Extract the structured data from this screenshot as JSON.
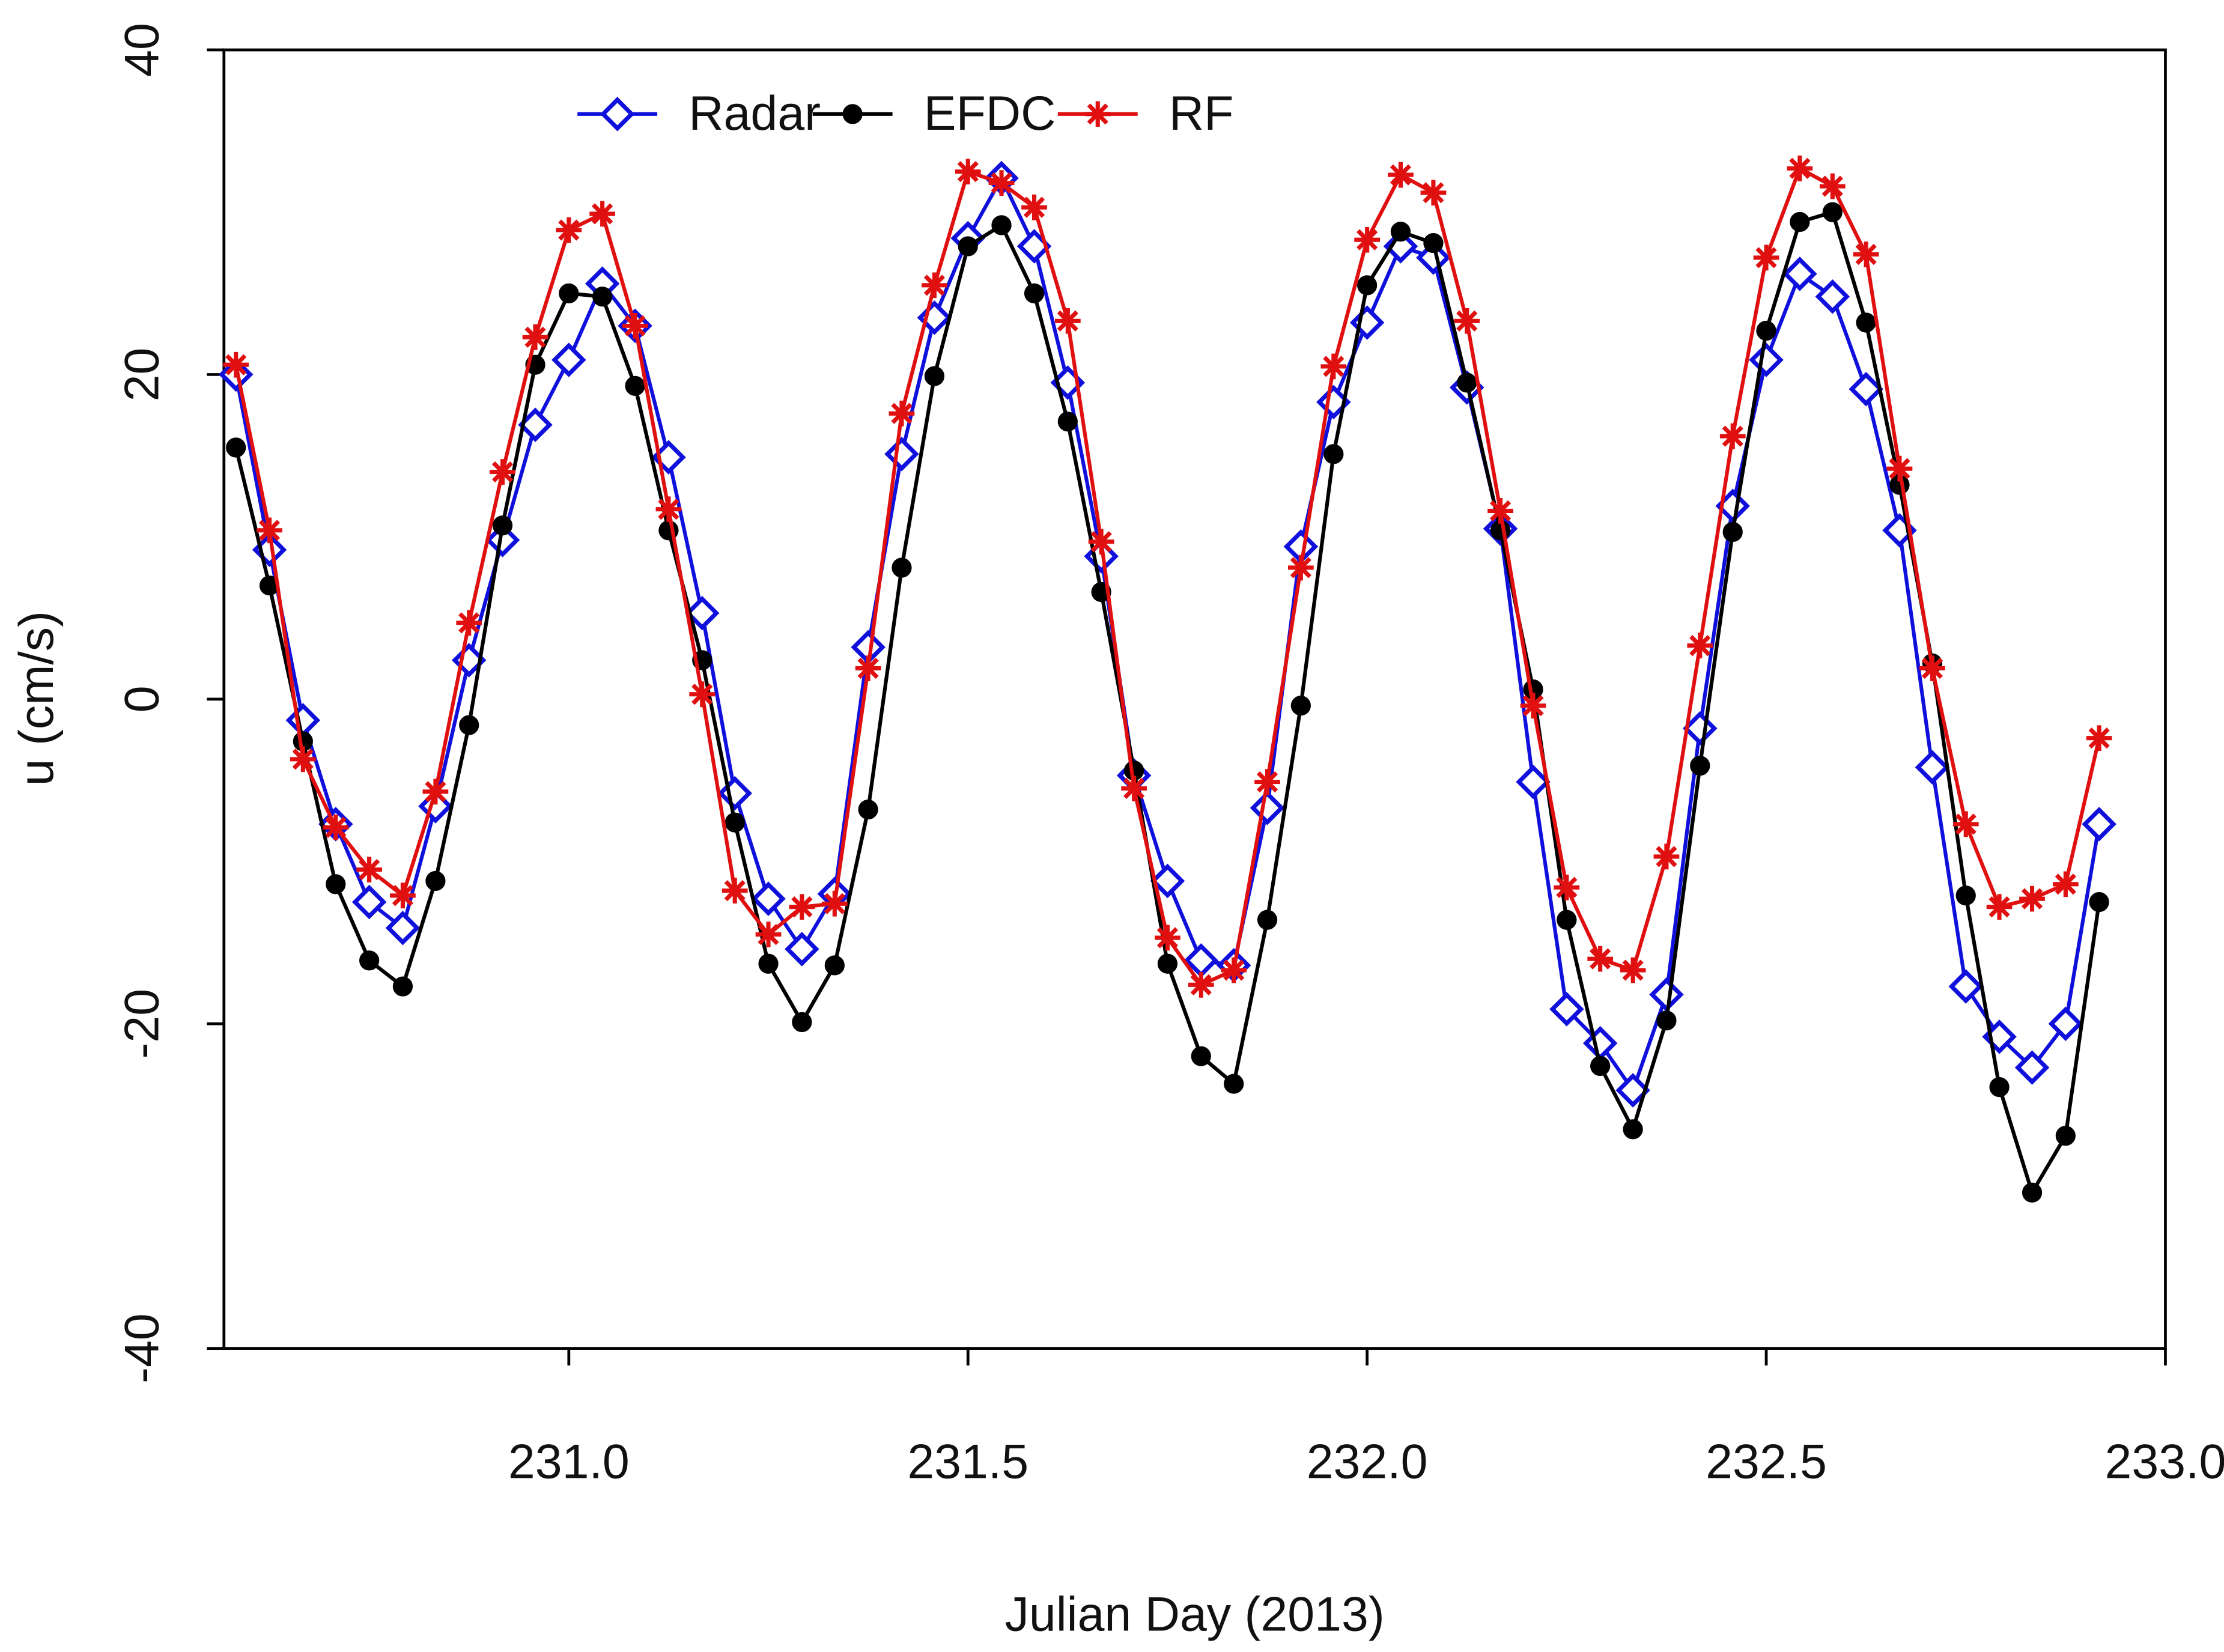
{
  "chart_data": {
    "type": "line",
    "x_label": "Julian Day (2013)",
    "y_label": "u (cm/s)",
    "x": [
      230.583,
      230.625,
      230.667,
      230.708,
      230.75,
      230.792,
      230.833,
      230.875,
      230.917,
      230.958,
      231,
      231.042,
      231.083,
      231.125,
      231.167,
      231.208,
      231.25,
      231.292,
      231.333,
      231.375,
      231.417,
      231.458,
      231.5,
      231.542,
      231.583,
      231.625,
      231.667,
      231.708,
      231.75,
      231.792,
      231.833,
      231.875,
      231.917,
      231.958,
      232,
      232.042,
      232.083,
      232.125,
      232.167,
      232.208,
      232.25,
      232.292,
      232.333,
      232.375,
      232.417,
      232.458,
      232.5,
      232.542,
      232.583,
      232.625,
      232.667,
      232.708,
      232.75,
      232.792,
      232.833,
      232.875,
      232.917
    ],
    "series": [
      {
        "name": "Radar",
        "color": "#1010dd",
        "marker": "diamond",
        "values": [
          20,
          9.2,
          -1.3,
          -7.7,
          -12.5,
          -14.1,
          -6.6,
          2.4,
          9.8,
          16.9,
          20.9,
          25.6,
          23,
          14.9,
          5.3,
          -5.8,
          -12.3,
          -15.4,
          -12,
          3.2,
          15.1,
          23.5,
          28.4,
          32.1,
          27.9,
          19.5,
          8.8,
          -4.7,
          -11.2,
          -16.1,
          -16.4,
          -6.7,
          9.4,
          18.3,
          23.2,
          27.9,
          27.2,
          19.2,
          10.5,
          -5.1,
          -19.1,
          -21.2,
          -24.1,
          -18.2,
          -1.8,
          11.9,
          20.9,
          26.2,
          24.8,
          19.1,
          10.4,
          -4.2,
          -17.7,
          -20.8,
          -22.7,
          -20,
          -7.7
        ]
      },
      {
        "name": "EFDC",
        "color": "#000000",
        "marker": "circle",
        "values": [
          15.5,
          7,
          -2.6,
          -11.4,
          -16.1,
          -17.7,
          -11.2,
          -1.6,
          10.7,
          20.6,
          25,
          24.8,
          19.3,
          10.4,
          2.4,
          -7.6,
          -16.3,
          -19.9,
          -16.4,
          -6.8,
          8.1,
          19.9,
          27.9,
          29.2,
          25,
          17.1,
          6.6,
          -4.4,
          -16.3,
          -22,
          -23.7,
          -13.6,
          -0.4,
          15.1,
          25.5,
          28.8,
          28.1,
          19.5,
          10.4,
          0.6,
          -13.6,
          -22.6,
          -26.5,
          -19.8,
          -4.1,
          10.3,
          22.7,
          29.4,
          30,
          23.2,
          13.2,
          2.2,
          -12.1,
          -23.9,
          -30.4,
          -26.9,
          -12.5
        ]
      },
      {
        "name": "RF",
        "color": "#e01010",
        "marker": "asterisk",
        "values": [
          20.6,
          10.4,
          -3.7,
          -7.9,
          -10.5,
          -12.1,
          -5.7,
          4.7,
          14,
          22.3,
          28.9,
          29.9,
          23,
          11.7,
          0.3,
          -11.8,
          -14.5,
          -12.8,
          -12.6,
          1.9,
          17.6,
          25.5,
          32.5,
          31.8,
          30.3,
          23.3,
          9.7,
          -5.5,
          -14.7,
          -17.6,
          -16.7,
          -5.1,
          8.1,
          20.5,
          28.3,
          32.3,
          31.2,
          23.3,
          11.6,
          -0.4,
          -11.6,
          -16,
          -16.7,
          -9.7,
          3.3,
          16.2,
          27.2,
          32.7,
          31.6,
          27.4,
          14.2,
          1.9,
          -7.7,
          -12.8,
          -12.3,
          -11.4,
          -2.4
        ]
      }
    ],
    "xlim": [
      230.568,
      233.0
    ],
    "xticks": [
      {
        "value": 231,
        "label": "231.0"
      },
      {
        "value": 231.5,
        "label": "231.5"
      },
      {
        "value": 232,
        "label": "232.0"
      },
      {
        "value": 232.5,
        "label": "232.5"
      },
      {
        "value": 233,
        "label": "233.0"
      }
    ],
    "ylim": [
      -40,
      40
    ],
    "yticks": [
      -40,
      -20,
      0,
      20,
      40
    ],
    "grid": false,
    "legend": "top"
  }
}
